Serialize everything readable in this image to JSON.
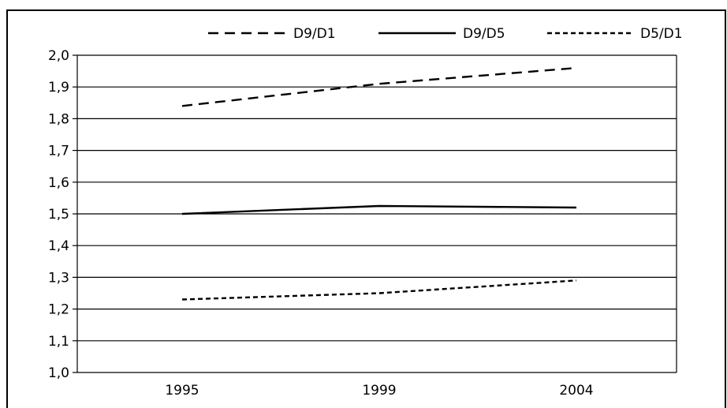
{
  "chart_data": {
    "type": "line",
    "title": "",
    "xlabel": "",
    "ylabel": "",
    "categories": [
      "1995",
      "1999",
      "2004"
    ],
    "ylim": [
      1.0,
      2.0
    ],
    "yticks": [
      "1,0",
      "1,1",
      "1,2",
      "1,3",
      "1,4",
      "1,5",
      "1,6",
      "1,7",
      "1,8",
      "1,9",
      "2,0"
    ],
    "grid": "horizontal",
    "legend_position": "top",
    "series": [
      {
        "name": "D9/D1",
        "values": [
          1.84,
          1.91,
          1.96
        ],
        "style": "dashed"
      },
      {
        "name": "D9/D5",
        "values": [
          1.5,
          1.525,
          1.52
        ],
        "style": "solid"
      },
      {
        "name": "D5/D1",
        "values": [
          1.23,
          1.25,
          1.29
        ],
        "style": "dotted"
      }
    ]
  }
}
